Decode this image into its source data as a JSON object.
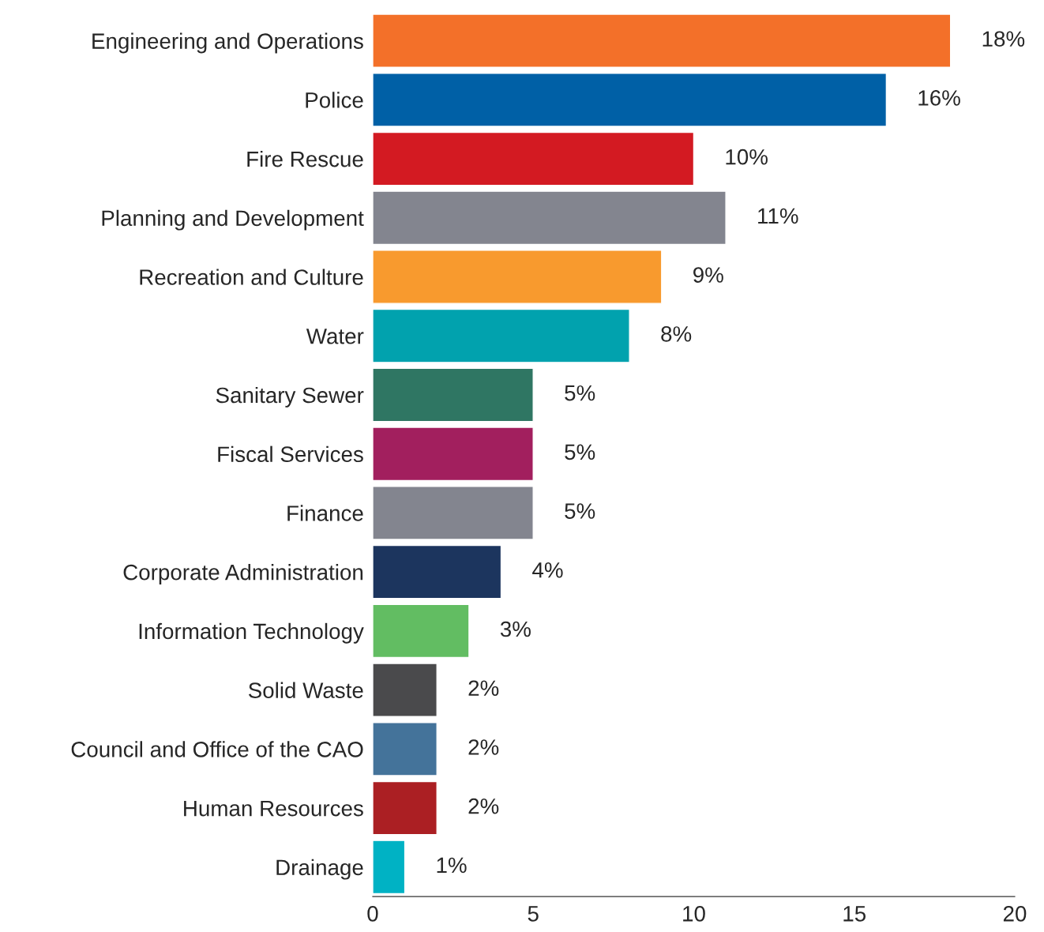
{
  "chart_data": {
    "type": "bar",
    "orientation": "horizontal",
    "categories": [
      "Engineering and Operations",
      "Police",
      "Fire Rescue",
      "Planning and Development",
      "Recreation and Culture",
      "Water",
      "Sanitary Sewer",
      "Fiscal Services",
      "Finance",
      "Corporate Administration",
      "Information Technology",
      "Solid Waste",
      "Council and Office of the CAO",
      "Human Resources",
      "Drainage"
    ],
    "values": [
      18,
      16,
      10,
      11,
      9,
      8,
      5,
      5,
      5,
      4,
      3,
      2,
      2,
      2,
      1
    ],
    "value_labels": [
      "18%",
      "16%",
      "10%",
      "11%",
      "9%",
      "8%",
      "5%",
      "5%",
      "5%",
      "4%",
      "3%",
      "2%",
      "2%",
      "2%",
      "1%"
    ],
    "colors": [
      "#f37029",
      "#0060a6",
      "#d31a22",
      "#83858f",
      "#f89a2e",
      "#01a2ae",
      "#2f7663",
      "#a21f5e",
      "#83858f",
      "#1c355e",
      "#62bd62",
      "#4a4a4c",
      "#44739a",
      "#ab1f23",
      "#00b2c4"
    ],
    "xlim": [
      0,
      20
    ],
    "xticks": [
      0,
      5,
      10,
      15,
      20
    ],
    "grid": false
  }
}
